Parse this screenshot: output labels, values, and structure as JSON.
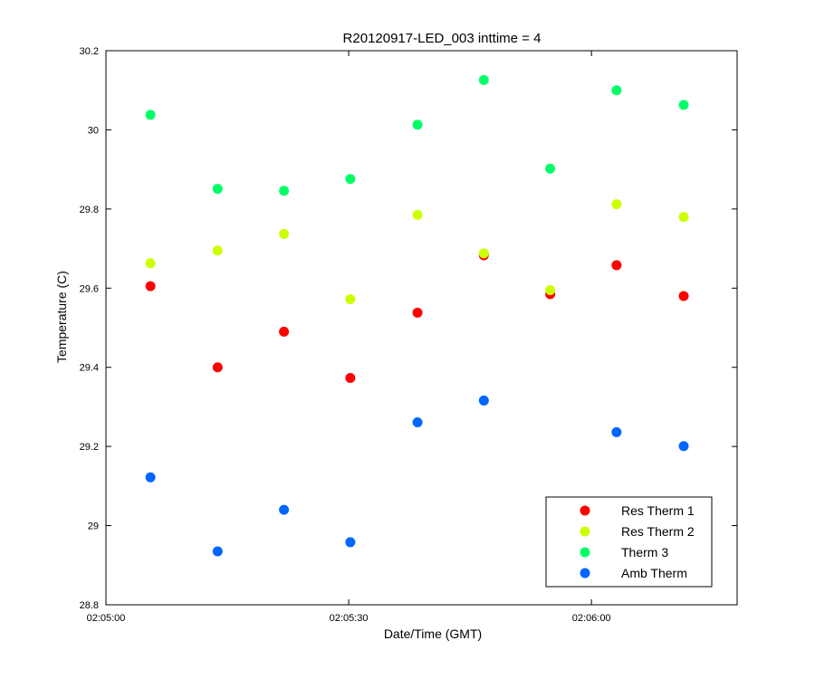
{
  "chart_data": {
    "type": "scatter",
    "title": "R20120917-LED_003 inttime = 4",
    "xlabel": "Date/Time (GMT)",
    "ylabel": "Temperature (C)",
    "xlim": [
      "02:05:00",
      "02:06:18"
    ],
    "ylim": [
      28.8,
      30.2
    ],
    "x_ticks": [
      "02:05:00",
      "02:05:30",
      "02:06:00"
    ],
    "y_ticks": [
      "28.8",
      "29",
      "29.2",
      "29.4",
      "29.6",
      "29.8",
      "30",
      "30.2"
    ],
    "grid": false,
    "legend_position": "bottom-right",
    "x": [
      "02:05:05.5",
      "02:05:13.8",
      "02:05:22",
      "02:05:30.2",
      "02:05:38.5",
      "02:05:46.7",
      "02:05:54.9",
      "02:06:03.1",
      "02:06:11.4"
    ],
    "series": [
      {
        "name": "Res Therm 1",
        "color": "#ff0000",
        "values": [
          29.605,
          29.4,
          29.49,
          29.373,
          29.538,
          29.683,
          29.585,
          29.658,
          29.58
        ]
      },
      {
        "name": "Res Therm 2",
        "color": "#ccff00",
        "values": [
          29.663,
          29.695,
          29.737,
          29.572,
          29.785,
          29.688,
          29.595,
          29.812,
          29.78
        ]
      },
      {
        "name": "Therm 3",
        "color": "#00ff66",
        "values": [
          30.038,
          29.851,
          29.846,
          29.876,
          30.013,
          30.126,
          29.902,
          30.1,
          30.063
        ]
      },
      {
        "name": "Amb Therm",
        "color": "#0066ff",
        "values": [
          29.122,
          28.935,
          29.04,
          28.958,
          29.261,
          29.316,
          null,
          29.236,
          29.201
        ]
      }
    ]
  }
}
